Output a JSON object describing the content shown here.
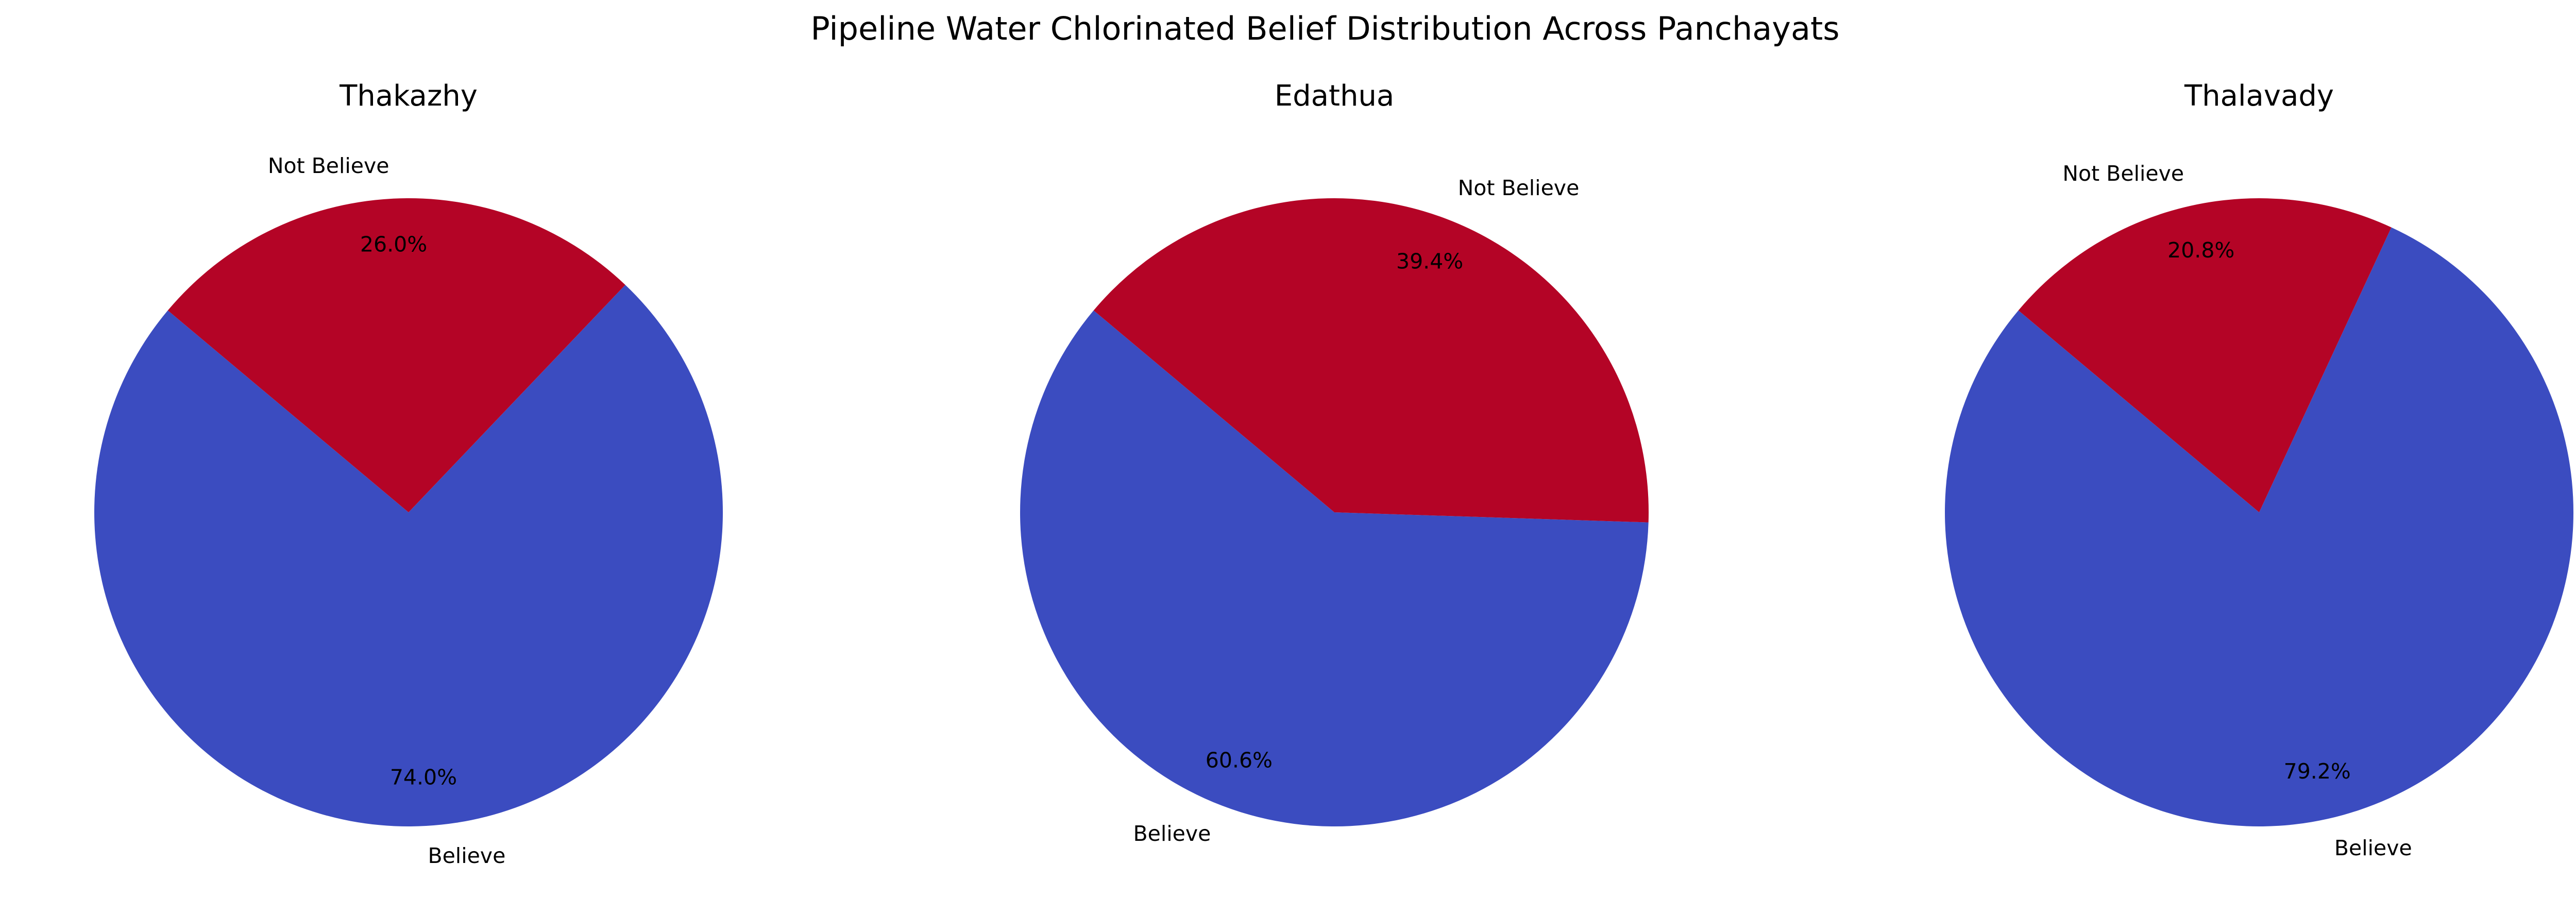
{
  "chart_data": {
    "type": "pie",
    "title": "Pipeline Water Chlorinated Belief Distribution Across Panchayats",
    "colors": {
      "Believe": "#3b4cc0",
      "Not Believe": "#b40426"
    },
    "pies": [
      {
        "title": "Thakazhy",
        "slices": [
          {
            "label": "Believe",
            "value": 74.0,
            "pct_label": "74.0%"
          },
          {
            "label": "Not Believe",
            "value": 26.0,
            "pct_label": "26.0%"
          }
        ]
      },
      {
        "title": "Edathua",
        "slices": [
          {
            "label": "Believe",
            "value": 60.6,
            "pct_label": "60.6%"
          },
          {
            "label": "Not Believe",
            "value": 39.4,
            "pct_label": "39.4%"
          }
        ]
      },
      {
        "title": "Thalavady",
        "slices": [
          {
            "label": "Believe",
            "value": 79.2,
            "pct_label": "79.2%"
          },
          {
            "label": "Not Believe",
            "value": 20.8,
            "pct_label": "20.8%"
          }
        ]
      }
    ]
  }
}
